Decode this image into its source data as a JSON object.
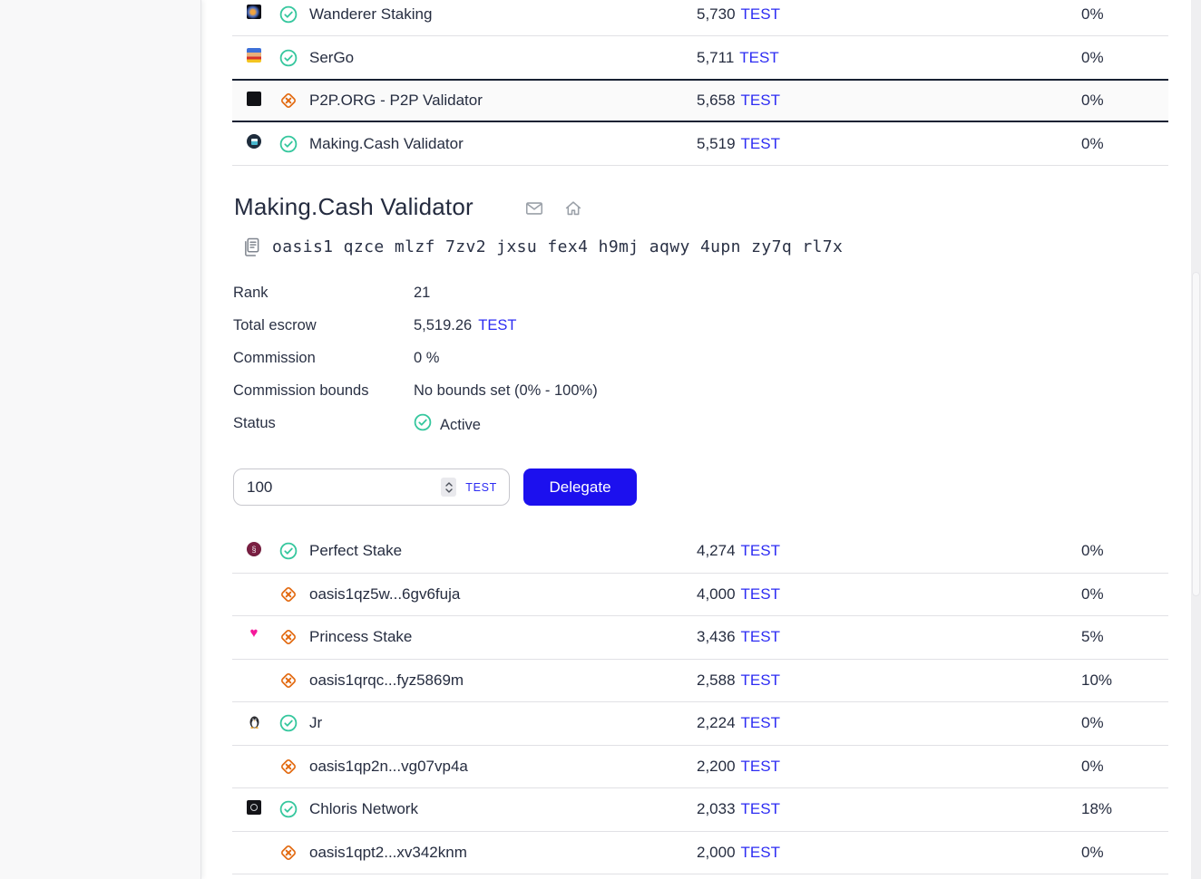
{
  "colors": {
    "link_blue": "#2d2cf3",
    "button_blue": "#1c10ee",
    "success_green": "#36c79e",
    "warning_orange": "#e2690f",
    "text_navy": "#262d40",
    "selected_border": "#182133"
  },
  "icons": {
    "email": "email-icon",
    "home": "home-icon",
    "copy": "copy-icon",
    "verified": "check-circle-icon",
    "unverified": "x-diamond-icon",
    "stepper": "number-stepper-icon"
  },
  "top_table": {
    "rows": [
      {
        "name": "Wanderer Staking",
        "amount": "5,730",
        "token": "TEST",
        "percent": "0%",
        "status": "verified",
        "avatar": "wanderer",
        "selected": false
      },
      {
        "name": "SerGo",
        "amount": "5,711",
        "token": "TEST",
        "percent": "0%",
        "status": "verified",
        "avatar": "sergo",
        "selected": false
      },
      {
        "name": "P2P.ORG - P2P Validator",
        "amount": "5,658",
        "token": "TEST",
        "percent": "0%",
        "status": "warning",
        "avatar": "p2p",
        "selected": true
      },
      {
        "name": "Making.Cash Validator",
        "amount": "5,519",
        "token": "TEST",
        "percent": "0%",
        "status": "verified",
        "avatar": "making",
        "selected": false
      }
    ]
  },
  "validator": {
    "title": "Making.Cash Validator",
    "address": "oasis1 qzce mlzf 7zv2 jxsu fex4 h9mj aqwy 4upn zy7q rl7x",
    "details": {
      "rank_label": "Rank",
      "rank_value": "21",
      "escrow_label": "Total escrow",
      "escrow_value": "5,519.26",
      "escrow_token": "TEST",
      "commission_label": "Commission",
      "commission_value": "0 %",
      "bounds_label": "Commission bounds",
      "bounds_value": "No bounds set (0% - 100%)",
      "status_label": "Status",
      "status_value": "Active"
    }
  },
  "delegate": {
    "amount": "100",
    "token": "TEST",
    "button": "Delegate"
  },
  "bottom_table": {
    "rows": [
      {
        "name": "Perfect Stake",
        "amount": "4,274",
        "token": "TEST",
        "percent": "0%",
        "status": "verified",
        "avatar": "perfect",
        "selected": false
      },
      {
        "name": "oasis1qz5w...6gv6fuja",
        "amount": "4,000",
        "token": "TEST",
        "percent": "0%",
        "status": "warning",
        "avatar": "none",
        "selected": false
      },
      {
        "name": "Princess Stake",
        "amount": "3,436",
        "token": "TEST",
        "percent": "5%",
        "status": "warning",
        "avatar": "heart",
        "selected": false
      },
      {
        "name": "oasis1qrqc...fyz5869m",
        "amount": "2,588",
        "token": "TEST",
        "percent": "10%",
        "status": "warning",
        "avatar": "none",
        "selected": false
      },
      {
        "name": "Jr",
        "amount": "2,224",
        "token": "TEST",
        "percent": "0%",
        "status": "verified",
        "avatar": "penguin",
        "selected": false
      },
      {
        "name": "oasis1qp2n...vg07vp4a",
        "amount": "2,200",
        "token": "TEST",
        "percent": "0%",
        "status": "warning",
        "avatar": "none",
        "selected": false
      },
      {
        "name": "Chloris Network",
        "amount": "2,033",
        "token": "TEST",
        "percent": "18%",
        "status": "verified",
        "avatar": "chloris",
        "selected": false
      },
      {
        "name": "oasis1qpt2...xv342knm",
        "amount": "2,000",
        "token": "TEST",
        "percent": "0%",
        "status": "warning",
        "avatar": "none",
        "selected": false
      }
    ]
  }
}
